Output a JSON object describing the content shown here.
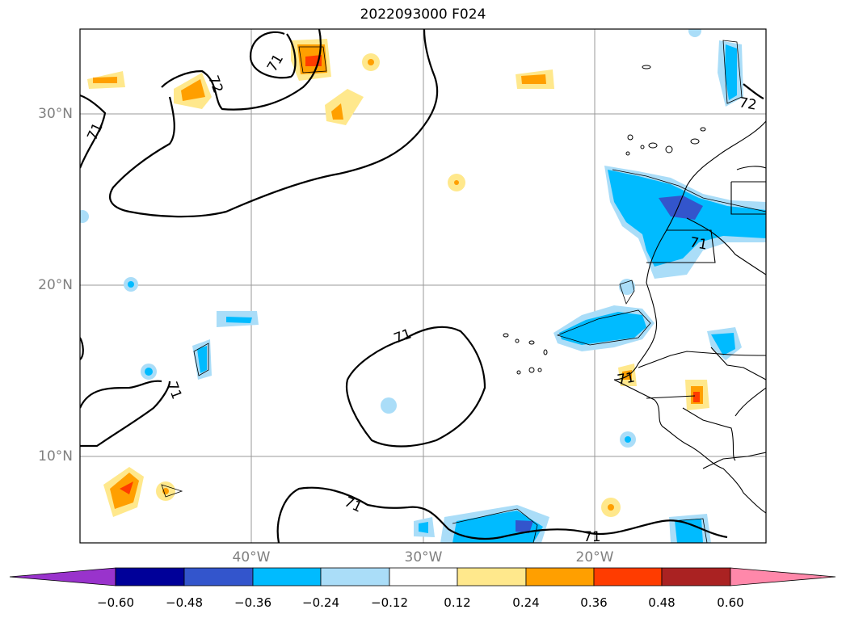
{
  "title": "2022093000 F024",
  "lat_labels": [
    "30°N",
    "20°N",
    "10°N"
  ],
  "lon_labels": [
    "40°W",
    "30°W",
    "20°W"
  ],
  "contour_labels": [
    "71",
    "72",
    "71",
    "71",
    "71",
    "71",
    "71",
    "71",
    "72"
  ],
  "colorbar": {
    "ticks": [
      "−0.60",
      "−0.48",
      "−0.36",
      "−0.24",
      "−0.12",
      "0.12",
      "0.24",
      "0.36",
      "0.48",
      "0.60"
    ],
    "colors": [
      "#9933cc",
      "#000099",
      "#3355cc",
      "#00bbff",
      "#aaddf8",
      "#ffffff",
      "#ffe88c",
      "#ff9f00",
      "#ff3c00",
      "#aa2222",
      "#ff88aa"
    ]
  },
  "palette": {
    "light_blue": "#aaddf8",
    "blue": "#00bbff",
    "mid_blue": "#3355cc",
    "light_yellow": "#ffe88c",
    "orange": "#ff9f00",
    "red_orange": "#ff3c00"
  }
}
